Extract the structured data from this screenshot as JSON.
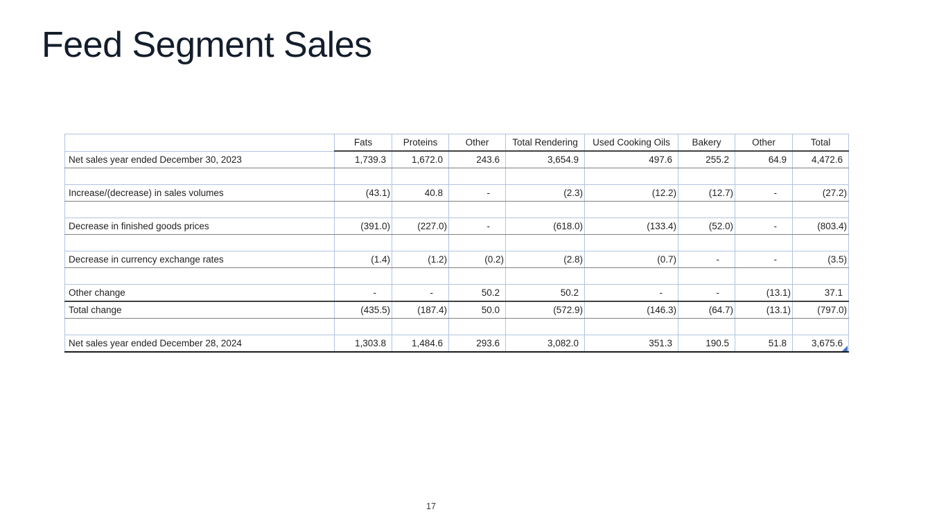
{
  "slide": {
    "title": "Feed Segment Sales",
    "page_number": "17"
  },
  "table": {
    "columns": [
      "",
      "Fats",
      "Proteins",
      "Other",
      "Total Rendering",
      "Used Cooking Oils",
      "Bakery",
      "Other",
      "Total"
    ],
    "rows": [
      {
        "type": "data",
        "label": "Net sales year ended December 30, 2023",
        "values": [
          "1,739.3",
          "1,672.0",
          "243.6",
          "3,654.9",
          "497.6",
          "255.2",
          "64.9",
          "4,472.6"
        ]
      },
      {
        "type": "spacer",
        "label": "",
        "values": [
          "",
          "",
          "",
          "",
          "",
          "",
          "",
          ""
        ]
      },
      {
        "type": "data",
        "label": "Increase/(decrease) in sales volumes",
        "values": [
          "(43.1)",
          "40.8",
          "-",
          "(2.3)",
          "(12.2)",
          "(12.7)",
          "-",
          "(27.2)"
        ]
      },
      {
        "type": "spacer",
        "label": "",
        "values": [
          "",
          "",
          "",
          "",
          "",
          "",
          "",
          ""
        ]
      },
      {
        "type": "data",
        "label": "Decrease in finished goods prices",
        "values": [
          "(391.0)",
          "(227.0)",
          "-",
          "(618.0)",
          "(133.4)",
          "(52.0)",
          "-",
          "(803.4)"
        ]
      },
      {
        "type": "spacer",
        "label": "",
        "values": [
          "",
          "",
          "",
          "",
          "",
          "",
          "",
          ""
        ]
      },
      {
        "type": "data",
        "label": "Decrease in currency exchange rates",
        "values": [
          "(1.4)",
          "(1.2)",
          "(0.2)",
          "(2.8)",
          "(0.7)",
          "-",
          "-",
          "(3.5)"
        ]
      },
      {
        "type": "spacer",
        "label": "",
        "values": [
          "",
          "",
          "",
          "",
          "",
          "",
          "",
          ""
        ]
      },
      {
        "type": "data",
        "label": "Other change",
        "values": [
          "-",
          "-",
          "50.2",
          "50.2",
          "-",
          "-",
          "(13.1)",
          "37.1"
        ]
      },
      {
        "type": "total",
        "label": "Total change",
        "values": [
          "(435.5)",
          "(187.4)",
          "50.0",
          "(572.9)",
          "(146.3)",
          "(64.7)",
          "(13.1)",
          "(797.0)"
        ]
      },
      {
        "type": "spacer",
        "label": "",
        "values": [
          "",
          "",
          "",
          "",
          "",
          "",
          "",
          ""
        ]
      },
      {
        "type": "grand",
        "label": "Net sales year ended December 28, 2024",
        "values": [
          "1,303.8",
          "1,484.6",
          "293.6",
          "3,082.0",
          "351.3",
          "190.5",
          "51.8",
          "3,675.6"
        ]
      }
    ]
  },
  "colors": {
    "title_navy": "#131d2b",
    "grid_blue": "#b0c4e0",
    "border_gray": "#7f7f7f",
    "border_dark": "#404040",
    "bottom_rule": "#1a1a1a",
    "text": "#212121",
    "handle_blue": "#4472c4",
    "background": "#ffffff"
  }
}
